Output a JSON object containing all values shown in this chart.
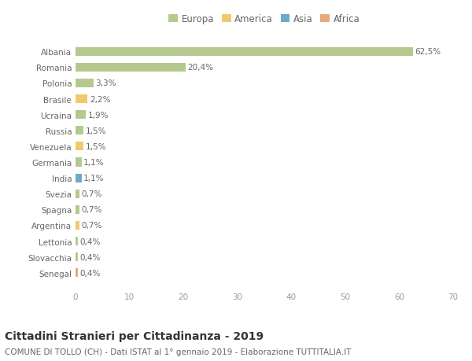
{
  "categories": [
    "Albania",
    "Romania",
    "Polonia",
    "Brasile",
    "Ucraina",
    "Russia",
    "Venezuela",
    "Germania",
    "India",
    "Svezia",
    "Spagna",
    "Argentina",
    "Lettonia",
    "Slovacchia",
    "Senegal"
  ],
  "values": [
    62.5,
    20.4,
    3.3,
    2.2,
    1.9,
    1.5,
    1.5,
    1.1,
    1.1,
    0.7,
    0.7,
    0.7,
    0.4,
    0.4,
    0.4
  ],
  "labels": [
    "62,5%",
    "20,4%",
    "3,3%",
    "2,2%",
    "1,9%",
    "1,5%",
    "1,5%",
    "1,1%",
    "1,1%",
    "0,7%",
    "0,7%",
    "0,7%",
    "0,4%",
    "0,4%",
    "0,4%"
  ],
  "continents": [
    "Europa",
    "Europa",
    "Europa",
    "America",
    "Europa",
    "Europa",
    "America",
    "Europa",
    "Asia",
    "Europa",
    "Europa",
    "America",
    "Europa",
    "Europa",
    "Africa"
  ],
  "continent_colors": {
    "Europa": "#b5c98e",
    "America": "#f0c96a",
    "Asia": "#6fa8c8",
    "Africa": "#e8a87c"
  },
  "legend_order": [
    "Europa",
    "America",
    "Asia",
    "Africa"
  ],
  "xlim": [
    0,
    70
  ],
  "xticks": [
    0,
    10,
    20,
    30,
    40,
    50,
    60,
    70
  ],
  "title": "Cittadini Stranieri per Cittadinanza - 2019",
  "subtitle": "COMUNE DI TOLLO (CH) - Dati ISTAT al 1° gennaio 2019 - Elaborazione TUTTITALIA.IT",
  "background_color": "#ffffff",
  "bar_height": 0.55,
  "title_fontsize": 10,
  "subtitle_fontsize": 7.5,
  "label_fontsize": 7.5,
  "tick_fontsize": 7.5,
  "legend_fontsize": 8.5
}
